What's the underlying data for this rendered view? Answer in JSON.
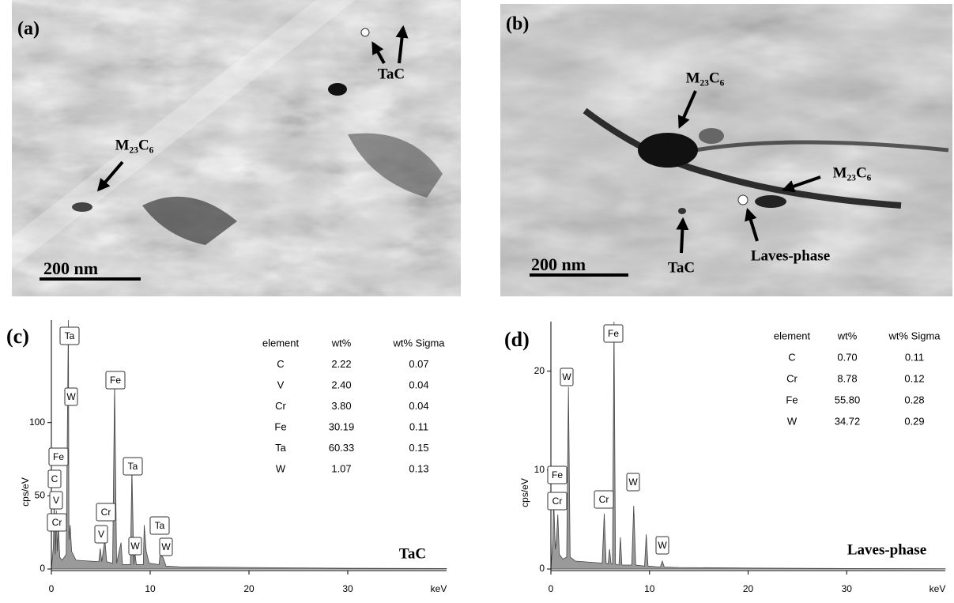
{
  "panels": [
    {
      "label": "(a)",
      "scale_bar": "200 nm",
      "annotations": [
        "TaC",
        "M₂₃C₆"
      ]
    },
    {
      "label": "(b)",
      "scale_bar": "200 nm",
      "annotations": [
        "M₂₃C₆",
        "M₂₃C₆",
        "TaC",
        "Laves-phase"
      ]
    }
  ],
  "chart_data": [
    {
      "type": "area",
      "panel_label": "(c)",
      "title": "TaC",
      "y_label": "cps/eV",
      "x_label": "keV",
      "xlim": [
        0,
        40
      ],
      "xticks": [
        0,
        10,
        20,
        30
      ],
      "ylim": [
        0,
        170
      ],
      "yticks": [
        0,
        50,
        100
      ],
      "color": "#9a9a9a",
      "x": [
        0,
        0.2,
        0.28,
        0.4,
        0.5,
        0.6,
        0.7,
        0.85,
        1.1,
        1.5,
        1.72,
        1.78,
        1.9,
        2.05,
        2.5,
        4.8,
        4.95,
        5.1,
        5.41,
        5.6,
        6.2,
        6.4,
        6.6,
        7.05,
        7.2,
        8.0,
        8.15,
        8.35,
        8.4,
        8.6,
        9.3,
        9.4,
        9.6,
        9.9,
        10.9,
        11.0,
        11.3,
        11.6,
        13,
        20,
        30,
        40
      ],
      "values": [
        0,
        15,
        45,
        10,
        40,
        12,
        30,
        8,
        6,
        10,
        170,
        20,
        30,
        12,
        6,
        5,
        14,
        5,
        20,
        5,
        4,
        127,
        4,
        18,
        3,
        3,
        68,
        3,
        14,
        3,
        3,
        30,
        12,
        4,
        3,
        10,
        8,
        2,
        1.5,
        1,
        0.5,
        0.3
      ],
      "peak_labels": [
        "Ta",
        "W",
        "Fe",
        "C",
        "V",
        "Cr",
        "Fe",
        "Ta",
        "Cr",
        "V",
        "W",
        "Ta",
        "W"
      ],
      "table": {
        "header": [
          "element",
          "wt%",
          "wt% Sigma"
        ],
        "rows": [
          [
            "C",
            "2.22",
            "0.07"
          ],
          [
            "V",
            "2.40",
            "0.04"
          ],
          [
            "Cr",
            "3.80",
            "0.04"
          ],
          [
            "Fe",
            "30.19",
            "0.11"
          ],
          [
            "Ta",
            "60.33",
            "0.15"
          ],
          [
            "W",
            "1.07",
            "0.13"
          ]
        ]
      }
    },
    {
      "type": "area",
      "panel_label": "(d)",
      "title": "Laves-phase",
      "y_label": "cps/eV",
      "x_label": "keV",
      "xlim": [
        0,
        40
      ],
      "xticks": [
        0,
        10,
        20,
        30
      ],
      "ylim": [
        0,
        25
      ],
      "yticks": [
        0,
        10,
        20
      ],
      "color": "#9a9a9a",
      "x": [
        0,
        0.2,
        0.28,
        0.45,
        0.57,
        0.7,
        0.85,
        1.2,
        1.6,
        1.78,
        1.95,
        2.5,
        5.2,
        5.41,
        5.6,
        5.8,
        5.95,
        6.1,
        6.25,
        6.4,
        6.55,
        6.9,
        7.05,
        7.2,
        8.2,
        8.4,
        8.6,
        9.5,
        9.67,
        9.85,
        11.1,
        11.3,
        11.5,
        13,
        20,
        30,
        40
      ],
      "values": [
        0,
        3,
        7,
        2,
        3,
        5.5,
        1.5,
        1,
        1.2,
        18.4,
        1.2,
        0.8,
        0.6,
        5.6,
        0.6,
        0.5,
        2,
        0.5,
        0.5,
        25,
        0.5,
        0.4,
        3.2,
        0.4,
        0.4,
        6.4,
        0.4,
        0.3,
        3.5,
        0.3,
        0.2,
        0.8,
        0.2,
        0.15,
        0.1,
        0.05,
        0.03
      ],
      "peak_labels": [
        "Fe",
        "W",
        "Fe",
        "Cr",
        "Cr",
        "W",
        "W"
      ],
      "table": {
        "header": [
          "element",
          "wt%",
          "wt% Sigma"
        ],
        "rows": [
          [
            "C",
            "0.70",
            "0.11"
          ],
          [
            "Cr",
            "8.78",
            "0.12"
          ],
          [
            "Fe",
            "55.80",
            "0.28"
          ],
          [
            "W",
            "34.72",
            "0.29"
          ]
        ]
      }
    }
  ]
}
